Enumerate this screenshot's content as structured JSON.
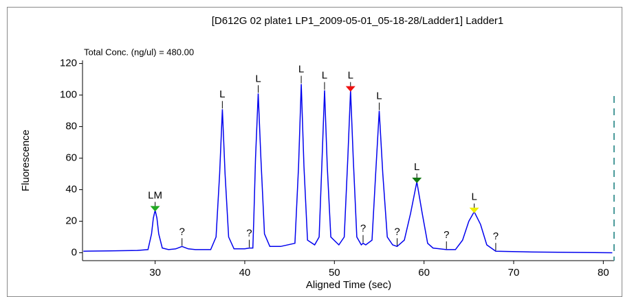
{
  "chart_data": {
    "type": "line",
    "title": "[D612G 02 plate1 LP1_2009-05-01_05-18-28/Ladder1] Ladder1",
    "annotation": "Total Conc. (ng/ul) = 480.00",
    "x_label": "Aligned Time (sec)",
    "y_label": "Fluorescence",
    "color": "#0000ee",
    "x": [
      22,
      25,
      28,
      29.2,
      29.6,
      29.8,
      30,
      30.2,
      30.4,
      30.8,
      31.5,
      32.3,
      33,
      33.7,
      34.5,
      36.2,
      36.8,
      37.2,
      37.5,
      37.8,
      38.2,
      38.8,
      40,
      40.5,
      40.9,
      41.0,
      41.2,
      41.5,
      41.8,
      42.2,
      42.8,
      44,
      45.6,
      46,
      46.3,
      46.6,
      47,
      47.8,
      48.3,
      48.6,
      48.9,
      49.2,
      49.6,
      50.5,
      51.1,
      51.5,
      51.8,
      52.1,
      52.5,
      53,
      53.2,
      53.5,
      54.2,
      54.6,
      55,
      55.4,
      55.9,
      56.5,
      57,
      57.8,
      58.5,
      59.2,
      59.8,
      60.4,
      61,
      62.5,
      63.5,
      64.3,
      65,
      65.6,
      66.3,
      67,
      68,
      72,
      81
    ],
    "values": [
      1,
      1.2,
      1.5,
      2,
      12,
      22,
      27,
      22,
      12,
      3,
      2,
      2.5,
      4,
      2.5,
      2,
      2,
      10,
      50,
      91,
      50,
      10,
      2.5,
      2.5,
      3,
      3,
      20,
      60,
      101,
      60,
      12,
      4,
      4,
      6,
      55,
      107,
      55,
      8,
      5,
      10,
      55,
      103,
      55,
      10,
      5,
      10,
      60,
      103,
      60,
      10,
      5,
      6,
      5,
      8,
      50,
      90,
      50,
      10,
      5,
      4,
      8,
      25,
      45,
      25,
      6,
      3,
      2,
      2,
      8,
      20,
      26,
      18,
      5,
      1,
      0.5,
      0
    ],
    "peaks": [
      {
        "x": 30,
        "y": 27,
        "label": "LM",
        "marker": "#22aa22"
      },
      {
        "x": 33,
        "y": 4,
        "label": "?"
      },
      {
        "x": 37.5,
        "y": 91,
        "label": "L"
      },
      {
        "x": 40.5,
        "y": 3,
        "label": "?"
      },
      {
        "x": 41.5,
        "y": 101,
        "label": "L"
      },
      {
        "x": 46.3,
        "y": 107,
        "label": "L"
      },
      {
        "x": 48.9,
        "y": 103,
        "label": "L"
      },
      {
        "x": 51.8,
        "y": 103,
        "label": "L",
        "marker": "#ee1111"
      },
      {
        "x": 53.2,
        "y": 6,
        "label": "?"
      },
      {
        "x": 55,
        "y": 90,
        "label": "L"
      },
      {
        "x": 57,
        "y": 4,
        "label": "?"
      },
      {
        "x": 59.2,
        "y": 45,
        "label": "L",
        "marker": "#117711"
      },
      {
        "x": 62.5,
        "y": 2,
        "label": "?"
      },
      {
        "x": 65.6,
        "y": 26,
        "label": "L",
        "marker": "#eeee00"
      },
      {
        "x": 68,
        "y": 1,
        "label": "?"
      }
    ],
    "xlim": [
      21.9,
      81.2
    ],
    "ylim": [
      -5,
      122
    ],
    "xticks": [
      30,
      40,
      50,
      60,
      70,
      80
    ],
    "yticks": [
      0,
      20,
      40,
      60,
      80,
      100,
      120
    ]
  }
}
